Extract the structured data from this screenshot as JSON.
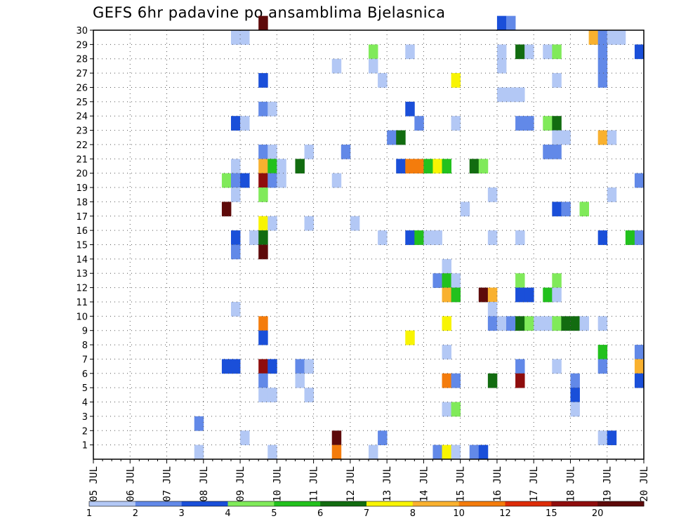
{
  "chart_data": {
    "type": "heatmap",
    "title": "GEFS 6hr padavine po ansamblima Bjelasnica",
    "xlabel": "",
    "ylabel": "",
    "x_tick_labels": [
      "05 JUL",
      "06 JUL",
      "07 JUL",
      "08 JUL",
      "09 JUL",
      "10 JUL",
      "11 JUL",
      "12 JUL",
      "13 JUL",
      "14 JUL",
      "15 JUL",
      "16 JUL",
      "17 JUL",
      "18 JUL",
      "19 JUL",
      "20 JUL"
    ],
    "x_range": [
      0,
      60
    ],
    "y_tick_labels": [
      "1",
      "2",
      "3",
      "4",
      "5",
      "6",
      "7",
      "8",
      "9",
      "10",
      "11",
      "12",
      "13",
      "14",
      "15",
      "16",
      "17",
      "18",
      "19",
      "20",
      "21",
      "22",
      "23",
      "24",
      "25",
      "26",
      "27",
      "28",
      "29",
      "30"
    ],
    "y_range": [
      0,
      30
    ],
    "grid": true,
    "colorbar": {
      "labels": [
        "1",
        "2",
        "3",
        "4",
        "5",
        "6",
        "7",
        "8",
        "10",
        "12",
        "15",
        "20"
      ],
      "colors": [
        "#b3c8f5",
        "#6289e8",
        "#1a4fd9",
        "#80ea5a",
        "#22c11d",
        "#126c10",
        "#f8f402",
        "#f9b12f",
        "#f47c0c",
        "#dd2c08",
        "#8f0d0d",
        "#5e0a0a"
      ]
    },
    "cells": [
      [
        18,
        30,
        11
      ],
      [
        44,
        30,
        2
      ],
      [
        45,
        30,
        1
      ],
      [
        15,
        29,
        0
      ],
      [
        16,
        29,
        0
      ],
      [
        54,
        29,
        7
      ],
      [
        55,
        29,
        1
      ],
      [
        56,
        29,
        0
      ],
      [
        57,
        29,
        0
      ],
      [
        30,
        28,
        3
      ],
      [
        34,
        28,
        0
      ],
      [
        44,
        28,
        0
      ],
      [
        46,
        28,
        5
      ],
      [
        47,
        28,
        0
      ],
      [
        49,
        28,
        0
      ],
      [
        50,
        28,
        3
      ],
      [
        55,
        28,
        1
      ],
      [
        59,
        28,
        2
      ],
      [
        26,
        27,
        0
      ],
      [
        30,
        27,
        0
      ],
      [
        44,
        27,
        0
      ],
      [
        55,
        27,
        1
      ],
      [
        18,
        26,
        2
      ],
      [
        31,
        26,
        0
      ],
      [
        39,
        26,
        6
      ],
      [
        50,
        26,
        0
      ],
      [
        55,
        26,
        1
      ],
      [
        44,
        25,
        0
      ],
      [
        45,
        25,
        0
      ],
      [
        46,
        25,
        0
      ],
      [
        18,
        24,
        1
      ],
      [
        19,
        24,
        0
      ],
      [
        34,
        24,
        2
      ],
      [
        15,
        23,
        2
      ],
      [
        16,
        23,
        0
      ],
      [
        35,
        23,
        1
      ],
      [
        39,
        23,
        0
      ],
      [
        46,
        23,
        1
      ],
      [
        47,
        23,
        1
      ],
      [
        49,
        23,
        3
      ],
      [
        50,
        23,
        5
      ],
      [
        32,
        22,
        1
      ],
      [
        33,
        22,
        5
      ],
      [
        50,
        22,
        0
      ],
      [
        51,
        22,
        0
      ],
      [
        55,
        22,
        7
      ],
      [
        56,
        22,
        0
      ],
      [
        18,
        21,
        1
      ],
      [
        19,
        21,
        0
      ],
      [
        23,
        21,
        0
      ],
      [
        27,
        21,
        1
      ],
      [
        49,
        21,
        1
      ],
      [
        50,
        21,
        1
      ],
      [
        15,
        20,
        0
      ],
      [
        18,
        20,
        7
      ],
      [
        19,
        20,
        4
      ],
      [
        20,
        20,
        0
      ],
      [
        22,
        20,
        5
      ],
      [
        33,
        20,
        2
      ],
      [
        34,
        20,
        8
      ],
      [
        35,
        20,
        8
      ],
      [
        36,
        20,
        4
      ],
      [
        37,
        20,
        6
      ],
      [
        38,
        20,
        4
      ],
      [
        41,
        20,
        5
      ],
      [
        42,
        20,
        3
      ],
      [
        14,
        19,
        3
      ],
      [
        15,
        19,
        1
      ],
      [
        16,
        19,
        2
      ],
      [
        18,
        19,
        10
      ],
      [
        19,
        19,
        1
      ],
      [
        20,
        19,
        0
      ],
      [
        26,
        19,
        0
      ],
      [
        59,
        19,
        1
      ],
      [
        15,
        18,
        0
      ],
      [
        18,
        18,
        3
      ],
      [
        43,
        18,
        0
      ],
      [
        56,
        18,
        0
      ],
      [
        14,
        17,
        11
      ],
      [
        40,
        17,
        0
      ],
      [
        50,
        17,
        2
      ],
      [
        51,
        17,
        1
      ],
      [
        53,
        17,
        3
      ],
      [
        18,
        16,
        6
      ],
      [
        19,
        16,
        0
      ],
      [
        23,
        16,
        0
      ],
      [
        28,
        16,
        0
      ],
      [
        15,
        15,
        2
      ],
      [
        17,
        15,
        0
      ],
      [
        18,
        15,
        5
      ],
      [
        31,
        15,
        0
      ],
      [
        34,
        15,
        2
      ],
      [
        35,
        15,
        4
      ],
      [
        36,
        15,
        0
      ],
      [
        37,
        15,
        0
      ],
      [
        43,
        15,
        0
      ],
      [
        46,
        15,
        0
      ],
      [
        55,
        15,
        2
      ],
      [
        58,
        15,
        4
      ],
      [
        59,
        15,
        1
      ],
      [
        15,
        14,
        1
      ],
      [
        18,
        14,
        11
      ],
      [
        38,
        13,
        0
      ],
      [
        37,
        12,
        1
      ],
      [
        38,
        12,
        4
      ],
      [
        39,
        12,
        0
      ],
      [
        46,
        12,
        3
      ],
      [
        50,
        12,
        3
      ],
      [
        38,
        11,
        7
      ],
      [
        39,
        11,
        4
      ],
      [
        42,
        11,
        11
      ],
      [
        43,
        11,
        7
      ],
      [
        46,
        11,
        2
      ],
      [
        47,
        11,
        2
      ],
      [
        49,
        11,
        4
      ],
      [
        50,
        11,
        0
      ],
      [
        15,
        10,
        0
      ],
      [
        43,
        10,
        0
      ],
      [
        18,
        9,
        8
      ],
      [
        38,
        9,
        6
      ],
      [
        43,
        9,
        1
      ],
      [
        44,
        9,
        0
      ],
      [
        45,
        9,
        1
      ],
      [
        46,
        9,
        5
      ],
      [
        47,
        9,
        3
      ],
      [
        48,
        9,
        0
      ],
      [
        49,
        9,
        0
      ],
      [
        50,
        9,
        3
      ],
      [
        51,
        9,
        5
      ],
      [
        52,
        9,
        5
      ],
      [
        53,
        9,
        0
      ],
      [
        55,
        9,
        0
      ],
      [
        18,
        8,
        2
      ],
      [
        34,
        8,
        6
      ],
      [
        38,
        7,
        0
      ],
      [
        55,
        7,
        4
      ],
      [
        59,
        7,
        1
      ],
      [
        14,
        6,
        2
      ],
      [
        15,
        6,
        2
      ],
      [
        18,
        6,
        10
      ],
      [
        19,
        6,
        2
      ],
      [
        22,
        6,
        1
      ],
      [
        23,
        6,
        0
      ],
      [
        46,
        6,
        1
      ],
      [
        50,
        6,
        0
      ],
      [
        55,
        6,
        1
      ],
      [
        59,
        6,
        7
      ],
      [
        18,
        5,
        1
      ],
      [
        22,
        5,
        0
      ],
      [
        38,
        5,
        8
      ],
      [
        39,
        5,
        1
      ],
      [
        43,
        5,
        5
      ],
      [
        46,
        5,
        10
      ],
      [
        52,
        5,
        1
      ],
      [
        59,
        5,
        2
      ],
      [
        18,
        4,
        0
      ],
      [
        19,
        4,
        0
      ],
      [
        23,
        4,
        0
      ],
      [
        52,
        4,
        2
      ],
      [
        38,
        3,
        0
      ],
      [
        39,
        3,
        3
      ],
      [
        52,
        3,
        0
      ],
      [
        11,
        2,
        1
      ],
      [
        16,
        1,
        0
      ],
      [
        26,
        1,
        11
      ],
      [
        31,
        1,
        1
      ],
      [
        55,
        1,
        0
      ],
      [
        56,
        1,
        2
      ],
      [
        11,
        0,
        0
      ],
      [
        19,
        0,
        0
      ],
      [
        26,
        0,
        8
      ],
      [
        30,
        0,
        0
      ],
      [
        37,
        0,
        1
      ],
      [
        38,
        0,
        6
      ],
      [
        39,
        0,
        0
      ],
      [
        41,
        0,
        1
      ],
      [
        42,
        0,
        2
      ]
    ]
  }
}
